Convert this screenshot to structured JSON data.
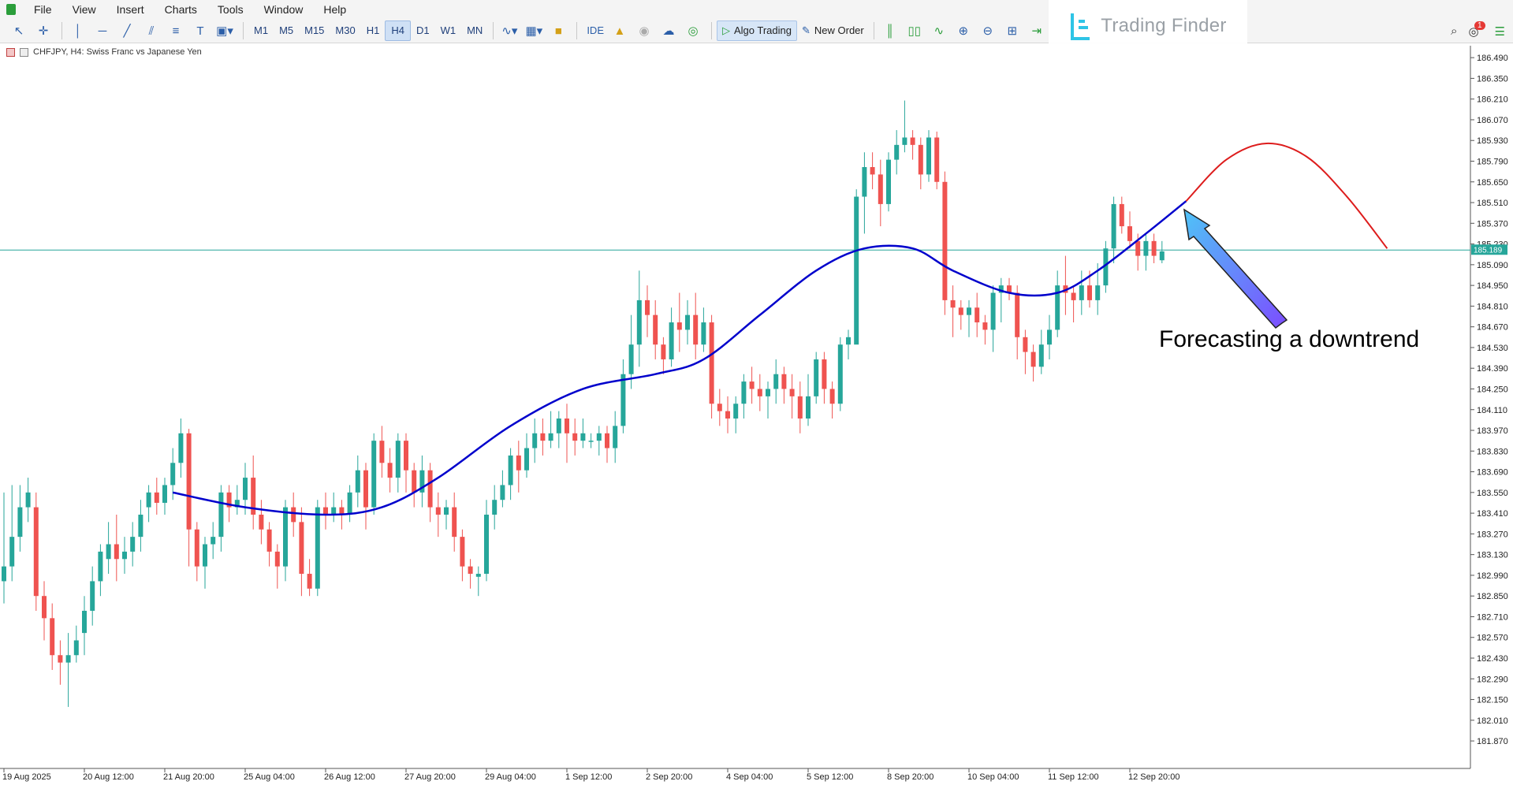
{
  "menu": [
    "File",
    "View",
    "Insert",
    "Charts",
    "Tools",
    "Window",
    "Help"
  ],
  "timeframes": [
    "M1",
    "M5",
    "M15",
    "M30",
    "H1",
    "H4",
    "D1",
    "W1",
    "MN"
  ],
  "active_timeframe": "H4",
  "toolbar": {
    "ide_label": "IDE",
    "algo_label": "Algo Trading",
    "new_order_label": "New Order"
  },
  "notifications_count": "1",
  "logo_text": "Trading Finder",
  "chart_header": "CHFJPY, H4:  Swiss Franc vs Japanese Yen",
  "annotation": "Forecasting a downtrend",
  "colors": {
    "bull": "#26a69a",
    "bear": "#ef5350",
    "ma": "#0000cc",
    "forecast": "#dd1c1c",
    "price_line": "#26a69a"
  },
  "chart_data": {
    "type": "candlestick",
    "symbol": "CHFJPY",
    "timeframe": "H4",
    "current_price": "185.189",
    "ylim": [
      181.7,
      186.56
    ],
    "y_ticks": [
      "186.490",
      "186.350",
      "186.210",
      "186.070",
      "185.930",
      "185.790",
      "185.650",
      "185.510",
      "185.370",
      "185.230",
      "185.090",
      "184.950",
      "184.810",
      "184.670",
      "184.530",
      "184.390",
      "184.250",
      "184.110",
      "183.970",
      "183.830",
      "183.690",
      "183.550",
      "183.410",
      "183.270",
      "183.130",
      "182.990",
      "182.850",
      "182.710",
      "182.570",
      "182.430",
      "182.290",
      "182.150",
      "182.010",
      "181.870"
    ],
    "x_labels": [
      {
        "bar": 0,
        "label": "19 Aug 2025"
      },
      {
        "bar": 10,
        "label": "20 Aug 12:00"
      },
      {
        "bar": 20,
        "label": "21 Aug 20:00"
      },
      {
        "bar": 30,
        "label": "25 Aug 04:00"
      },
      {
        "bar": 40,
        "label": "26 Aug 12:00"
      },
      {
        "bar": 50,
        "label": "27 Aug 20:00"
      },
      {
        "bar": 60,
        "label": "29 Aug 04:00"
      },
      {
        "bar": 70,
        "label": "1 Sep 12:00"
      },
      {
        "bar": 80,
        "label": "2 Sep 20:00"
      },
      {
        "bar": 90,
        "label": "4 Sep 04:00"
      },
      {
        "bar": 100,
        "label": "5 Sep 12:00"
      },
      {
        "bar": 110,
        "label": "8 Sep 20:00"
      },
      {
        "bar": 120,
        "label": "10 Sep 04:00"
      },
      {
        "bar": 130,
        "label": "11 Sep 12:00"
      },
      {
        "bar": 140,
        "label": "12 Sep 20:00"
      }
    ],
    "candles": [
      [
        182.95,
        183.05,
        183.55,
        182.8
      ],
      [
        183.05,
        183.25,
        183.6,
        182.95
      ],
      [
        183.25,
        183.45,
        183.6,
        183.15
      ],
      [
        183.45,
        183.55,
        183.65,
        183.35
      ],
      [
        183.45,
        182.85,
        183.55,
        182.75
      ],
      [
        182.85,
        182.7,
        182.95,
        182.55
      ],
      [
        182.7,
        182.45,
        182.8,
        182.35
      ],
      [
        182.45,
        182.4,
        182.55,
        182.25
      ],
      [
        182.4,
        182.45,
        182.6,
        182.1
      ],
      [
        182.45,
        182.55,
        182.65,
        182.4
      ],
      [
        182.6,
        182.75,
        182.85,
        182.45
      ],
      [
        182.75,
        182.95,
        183.05,
        182.65
      ],
      [
        182.95,
        183.15,
        183.2,
        182.85
      ],
      [
        183.1,
        183.2,
        183.35,
        183.0
      ],
      [
        183.2,
        183.1,
        183.4,
        182.95
      ],
      [
        183.1,
        183.15,
        183.25,
        183.0
      ],
      [
        183.15,
        183.25,
        183.35,
        183.05
      ],
      [
        183.25,
        183.4,
        183.5,
        183.15
      ],
      [
        183.45,
        183.55,
        183.6,
        183.35
      ],
      [
        183.55,
        183.48,
        183.65,
        183.4
      ],
      [
        183.48,
        183.6,
        183.65,
        183.4
      ],
      [
        183.6,
        183.75,
        183.85,
        183.5
      ],
      [
        183.75,
        183.95,
        184.05,
        183.65
      ],
      [
        183.95,
        183.3,
        183.98,
        183.05
      ],
      [
        183.3,
        183.05,
        183.35,
        182.95
      ],
      [
        183.05,
        183.2,
        183.25,
        182.9
      ],
      [
        183.2,
        183.25,
        183.35,
        183.1
      ],
      [
        183.25,
        183.55,
        183.6,
        183.15
      ],
      [
        183.55,
        183.45,
        183.6,
        183.35
      ],
      [
        183.45,
        183.5,
        183.6,
        183.4
      ],
      [
        183.5,
        183.65,
        183.75,
        183.4
      ],
      [
        183.65,
        183.4,
        183.8,
        183.3
      ],
      [
        183.4,
        183.3,
        183.5,
        183.2
      ],
      [
        183.3,
        183.15,
        183.35,
        183.05
      ],
      [
        183.15,
        183.05,
        183.2,
        182.9
      ],
      [
        183.05,
        183.45,
        183.5,
        182.95
      ],
      [
        183.45,
        183.35,
        183.55,
        183.25
      ],
      [
        183.35,
        183.0,
        183.45,
        182.85
      ],
      [
        183.0,
        182.9,
        183.1,
        182.85
      ],
      [
        182.9,
        183.45,
        183.5,
        182.85
      ],
      [
        183.45,
        183.4,
        183.55,
        183.3
      ],
      [
        183.4,
        183.45,
        183.55,
        183.35
      ],
      [
        183.45,
        183.4,
        183.5,
        183.3
      ],
      [
        183.4,
        183.55,
        183.6,
        183.35
      ],
      [
        183.55,
        183.7,
        183.8,
        183.45
      ],
      [
        183.7,
        183.45,
        183.75,
        183.3
      ],
      [
        183.45,
        183.9,
        183.95,
        183.4
      ],
      [
        183.9,
        183.75,
        184.0,
        183.65
      ],
      [
        183.75,
        183.65,
        183.85,
        183.55
      ],
      [
        183.65,
        183.9,
        183.95,
        183.55
      ],
      [
        183.9,
        183.7,
        183.95,
        183.55
      ],
      [
        183.7,
        183.55,
        183.75,
        183.45
      ],
      [
        183.55,
        183.7,
        183.8,
        183.45
      ],
      [
        183.7,
        183.45,
        183.75,
        183.35
      ],
      [
        183.45,
        183.4,
        183.55,
        183.25
      ],
      [
        183.4,
        183.45,
        183.5,
        183.3
      ],
      [
        183.45,
        183.25,
        183.55,
        183.15
      ],
      [
        183.25,
        183.05,
        183.3,
        182.95
      ],
      [
        183.05,
        183.0,
        183.1,
        182.9
      ],
      [
        182.98,
        183.0,
        183.05,
        182.85
      ],
      [
        183.0,
        183.4,
        183.5,
        182.95
      ],
      [
        183.4,
        183.5,
        183.6,
        183.3
      ],
      [
        183.5,
        183.6,
        183.7,
        183.45
      ],
      [
        183.6,
        183.8,
        183.85,
        183.5
      ],
      [
        183.8,
        183.7,
        183.9,
        183.55
      ],
      [
        183.7,
        183.85,
        183.95,
        183.65
      ],
      [
        183.85,
        183.95,
        184.05,
        183.75
      ],
      [
        183.95,
        183.9,
        184.05,
        183.8
      ],
      [
        183.9,
        183.95,
        184.1,
        183.85
      ],
      [
        183.95,
        184.05,
        184.1,
        183.85
      ],
      [
        184.05,
        183.95,
        184.15,
        183.75
      ],
      [
        183.95,
        183.9,
        184.05,
        183.8
      ],
      [
        183.9,
        183.95,
        184.05,
        183.85
      ],
      [
        183.9,
        183.9,
        183.95,
        183.85
      ],
      [
        183.9,
        183.95,
        184.0,
        183.8
      ],
      [
        183.95,
        183.85,
        184.0,
        183.75
      ],
      [
        183.85,
        184.0,
        184.1,
        183.75
      ],
      [
        184.0,
        184.35,
        184.45,
        183.95
      ],
      [
        184.35,
        184.55,
        184.75,
        184.25
      ],
      [
        184.55,
        184.85,
        185.05,
        184.4
      ],
      [
        184.85,
        184.75,
        184.95,
        184.6
      ],
      [
        184.75,
        184.55,
        184.85,
        184.45
      ],
      [
        184.55,
        184.45,
        184.6,
        184.35
      ],
      [
        184.45,
        184.7,
        184.8,
        184.4
      ],
      [
        184.7,
        184.65,
        184.9,
        184.5
      ],
      [
        184.65,
        184.75,
        184.85,
        184.55
      ],
      [
        184.75,
        184.55,
        184.9,
        184.45
      ],
      [
        184.55,
        184.7,
        184.8,
        184.5
      ],
      [
        184.7,
        184.15,
        184.75,
        184.05
      ],
      [
        184.15,
        184.1,
        184.25,
        184.0
      ],
      [
        184.1,
        184.05,
        184.2,
        183.95
      ],
      [
        184.05,
        184.15,
        184.2,
        183.95
      ],
      [
        184.15,
        184.3,
        184.35,
        184.05
      ],
      [
        184.3,
        184.25,
        184.4,
        184.15
      ],
      [
        184.25,
        184.2,
        184.35,
        184.1
      ],
      [
        184.2,
        184.25,
        184.3,
        184.05
      ],
      [
        184.25,
        184.35,
        184.45,
        184.15
      ],
      [
        184.35,
        184.25,
        184.4,
        184.15
      ],
      [
        184.25,
        184.2,
        184.35,
        184.05
      ],
      [
        184.2,
        184.05,
        184.3,
        183.95
      ],
      [
        184.05,
        184.2,
        184.35,
        184.0
      ],
      [
        184.2,
        184.45,
        184.5,
        184.15
      ],
      [
        184.45,
        184.25,
        184.5,
        184.15
      ],
      [
        184.25,
        184.15,
        184.3,
        184.05
      ],
      [
        184.15,
        184.55,
        184.6,
        184.1
      ],
      [
        184.55,
        184.6,
        184.65,
        184.45
      ],
      [
        184.55,
        185.55,
        185.6,
        185.45
      ],
      [
        185.55,
        185.75,
        185.85,
        185.3
      ],
      [
        185.75,
        185.7,
        185.85,
        185.6
      ],
      [
        185.7,
        185.5,
        185.8,
        185.35
      ],
      [
        185.5,
        185.8,
        185.85,
        185.45
      ],
      [
        185.8,
        185.9,
        186.0,
        185.7
      ],
      [
        185.9,
        185.95,
        186.2,
        185.85
      ],
      [
        185.95,
        185.9,
        186.0,
        185.8
      ],
      [
        185.9,
        185.7,
        185.95,
        185.6
      ],
      [
        185.7,
        185.95,
        186.0,
        185.65
      ],
      [
        185.95,
        185.65,
        185.99,
        185.6
      ],
      [
        185.65,
        184.85,
        185.72,
        184.75
      ],
      [
        184.85,
        184.8,
        184.95,
        184.6
      ],
      [
        184.8,
        184.75,
        184.85,
        184.65
      ],
      [
        184.75,
        184.8,
        184.85,
        184.6
      ],
      [
        184.8,
        184.7,
        184.9,
        184.6
      ],
      [
        184.7,
        184.65,
        184.75,
        184.55
      ],
      [
        184.65,
        184.9,
        184.95,
        184.5
      ],
      [
        184.9,
        184.95,
        185.0,
        184.7
      ],
      [
        184.95,
        184.9,
        185.0,
        184.85
      ],
      [
        184.9,
        184.6,
        184.95,
        184.45
      ],
      [
        184.6,
        184.5,
        184.65,
        184.35
      ],
      [
        184.5,
        184.4,
        184.55,
        184.3
      ],
      [
        184.4,
        184.55,
        184.65,
        184.35
      ],
      [
        184.55,
        184.65,
        184.75,
        184.45
      ],
      [
        184.65,
        184.95,
        185.05,
        184.6
      ],
      [
        184.95,
        184.9,
        185.15,
        184.75
      ],
      [
        184.9,
        184.85,
        184.95,
        184.7
      ],
      [
        184.85,
        184.95,
        185.05,
        184.75
      ],
      [
        184.95,
        184.85,
        185.05,
        184.8
      ],
      [
        184.85,
        184.95,
        185.1,
        184.75
      ],
      [
        184.95,
        185.2,
        185.25,
        184.9
      ],
      [
        185.2,
        185.5,
        185.55,
        185.1
      ],
      [
        185.5,
        185.35,
        185.55,
        185.3
      ],
      [
        185.35,
        185.25,
        185.45,
        185.2
      ],
      [
        185.25,
        185.15,
        185.3,
        185.05
      ],
      [
        185.15,
        185.25,
        185.3,
        185.05
      ],
      [
        185.25,
        185.15,
        185.3,
        185.1
      ],
      [
        185.12,
        185.18,
        185.25,
        185.1
      ]
    ],
    "moving_average": [
      [
        21,
        183.55
      ],
      [
        30,
        183.45
      ],
      [
        40,
        183.4
      ],
      [
        47,
        183.45
      ],
      [
        54,
        183.65
      ],
      [
        63,
        184.0
      ],
      [
        72,
        184.25
      ],
      [
        81,
        184.35
      ],
      [
        87,
        184.45
      ],
      [
        94,
        184.75
      ],
      [
        101,
        185.05
      ],
      [
        107,
        185.2
      ],
      [
        113,
        185.2
      ],
      [
        118,
        185.05
      ],
      [
        125,
        184.9
      ],
      [
        131,
        184.9
      ],
      [
        136,
        185.05
      ],
      [
        142,
        185.3
      ],
      [
        147,
        185.52
      ]
    ],
    "forecast_curve": [
      [
        147,
        185.52
      ],
      [
        152,
        185.8
      ],
      [
        157,
        185.91
      ],
      [
        162,
        185.82
      ],
      [
        167,
        185.55
      ],
      [
        172,
        185.2
      ]
    ]
  }
}
